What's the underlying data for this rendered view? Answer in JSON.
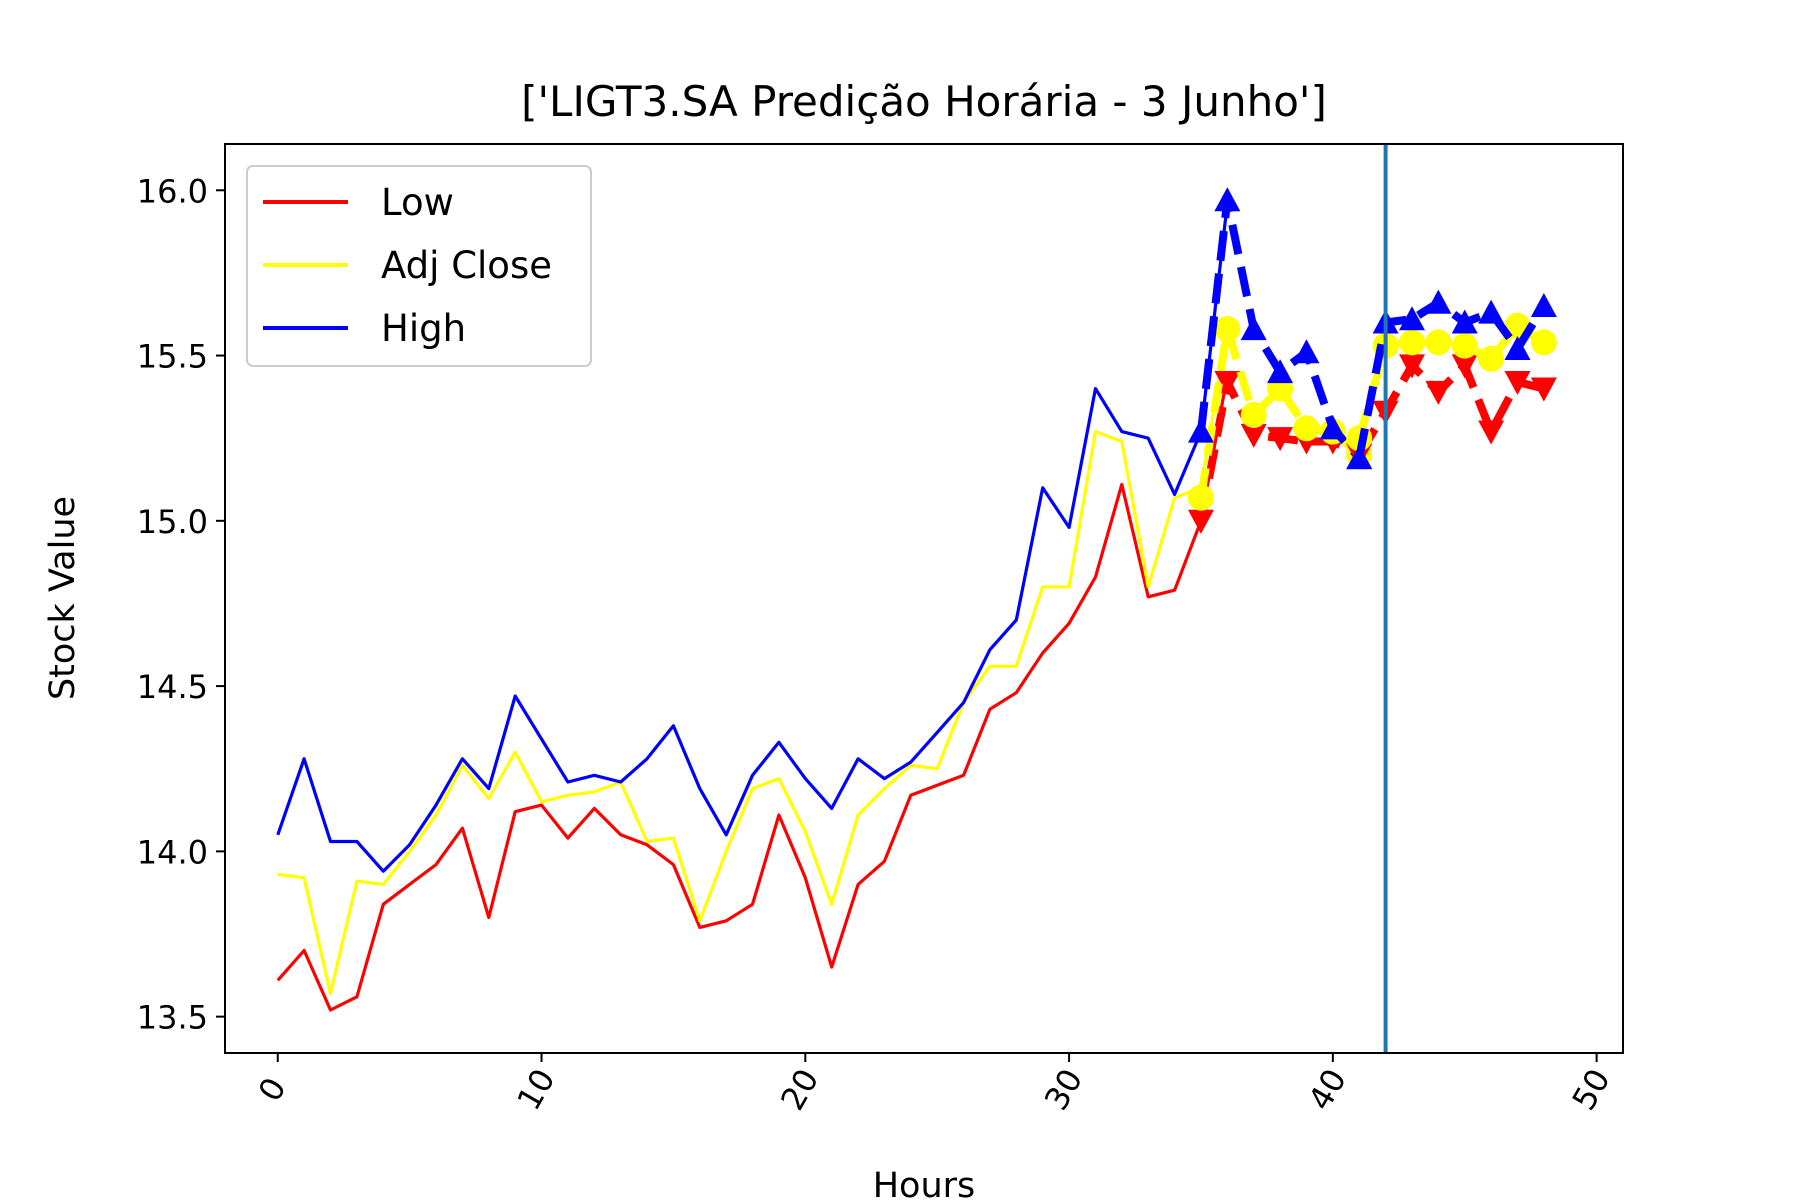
{
  "chart_data": {
    "type": "line",
    "title": "['LIGT3.SA Predição Horária - 3 Junho']",
    "xlabel": "Hours",
    "ylabel": "Stock Value",
    "xlim": [
      -2,
      51
    ],
    "ylim": [
      13.39,
      16.14
    ],
    "xticks": [
      0,
      10,
      20,
      30,
      40,
      50
    ],
    "xtick_labels": [
      "0",
      "10",
      "20",
      "30",
      "40",
      "50"
    ],
    "yticks": [
      13.5,
      14.0,
      14.5,
      15.0,
      15.5,
      16.0
    ],
    "ytick_labels": [
      "13.5",
      "14.0",
      "14.5",
      "15.0",
      "15.5",
      "16.0"
    ],
    "legend_position": "upper-left",
    "vertical_line": {
      "x": 42,
      "color": "#1f77b4"
    },
    "series": [
      {
        "name": "Low",
        "color": "#ff0000",
        "style": "solid",
        "marker": "",
        "x": [
          0,
          1,
          2,
          3,
          4,
          5,
          6,
          7,
          8,
          9,
          10,
          11,
          12,
          13,
          14,
          15,
          16,
          17,
          18,
          19,
          20,
          21,
          22,
          23,
          24,
          25,
          26,
          27,
          28,
          29,
          30,
          31,
          32,
          33,
          34,
          35,
          36
        ],
        "values": [
          13.61,
          13.7,
          13.52,
          13.56,
          13.84,
          13.9,
          13.96,
          14.07,
          13.8,
          14.12,
          14.14,
          14.04,
          14.13,
          14.05,
          14.02,
          13.96,
          13.77,
          13.79,
          13.84,
          14.11,
          13.92,
          13.65,
          13.9,
          13.97,
          14.17,
          14.2,
          14.23,
          14.43,
          14.48,
          14.6,
          14.69,
          14.83,
          15.11,
          14.77,
          14.79,
          15.0,
          15.44
        ]
      },
      {
        "name": "Adj Close",
        "color": "#ffff00",
        "style": "solid",
        "marker": "",
        "x": [
          0,
          1,
          2,
          3,
          4,
          5,
          6,
          7,
          8,
          9,
          10,
          11,
          12,
          13,
          14,
          15,
          16,
          17,
          18,
          19,
          20,
          21,
          22,
          23,
          24,
          25,
          26,
          27,
          28,
          29,
          30,
          31,
          32,
          33,
          34,
          35,
          36
        ],
        "values": [
          13.93,
          13.92,
          13.57,
          13.91,
          13.9,
          14.0,
          14.11,
          14.26,
          14.16,
          14.3,
          14.15,
          14.17,
          14.18,
          14.21,
          14.03,
          14.04,
          13.79,
          14.0,
          14.19,
          14.22,
          14.06,
          13.84,
          14.11,
          14.19,
          14.26,
          14.25,
          14.45,
          14.56,
          14.56,
          14.8,
          14.8,
          15.27,
          15.24,
          14.8,
          15.07,
          15.1,
          15.58
        ]
      },
      {
        "name": "High",
        "color": "#0000ff",
        "style": "solid",
        "marker": "",
        "x": [
          0,
          1,
          2,
          3,
          4,
          5,
          6,
          7,
          8,
          9,
          10,
          11,
          12,
          13,
          14,
          15,
          16,
          17,
          18,
          19,
          20,
          21,
          22,
          23,
          24,
          25,
          26,
          27,
          28,
          29,
          30,
          31,
          32,
          33,
          34,
          35,
          36
        ],
        "values": [
          14.05,
          14.28,
          14.03,
          14.03,
          13.94,
          14.02,
          14.14,
          14.28,
          14.19,
          14.47,
          14.34,
          14.21,
          14.23,
          14.21,
          14.28,
          14.38,
          14.19,
          14.05,
          14.23,
          14.33,
          14.22,
          14.13,
          14.28,
          14.22,
          14.27,
          14.36,
          14.45,
          14.61,
          14.7,
          15.1,
          14.98,
          15.4,
          15.27,
          15.25,
          15.08,
          15.27,
          15.96
        ]
      },
      {
        "name": "",
        "color": "#ff0000",
        "style": "dashed",
        "marker": "triangle-down",
        "x": [
          35,
          36,
          37,
          38,
          39,
          40,
          41
        ],
        "values": [
          15.0,
          15.42,
          15.26,
          15.25,
          15.24,
          15.24,
          15.2
        ]
      },
      {
        "name": "",
        "color": "#ffff00",
        "style": "dashed",
        "marker": "circle",
        "x": [
          35,
          36,
          37,
          38,
          39,
          40,
          41
        ],
        "values": [
          15.07,
          15.58,
          15.32,
          15.4,
          15.28,
          15.27,
          15.2
        ]
      },
      {
        "name": "",
        "color": "#0000ff",
        "style": "dashed",
        "marker": "triangle-up",
        "x": [
          35,
          36,
          37,
          38,
          39,
          40,
          41
        ],
        "values": [
          15.27,
          15.97,
          15.58,
          15.45,
          15.51,
          15.28,
          15.19
        ]
      },
      {
        "name": "",
        "color": "#ff0000",
        "style": "dashed",
        "marker": "triangle-down",
        "x": [
          41,
          42,
          43,
          44,
          45,
          46,
          47,
          48
        ],
        "values": [
          15.2,
          15.33,
          15.47,
          15.39,
          15.47,
          15.27,
          15.42,
          15.4
        ]
      },
      {
        "name": "",
        "color": "#ffff00",
        "style": "dashed",
        "marker": "circle",
        "x": [
          41,
          42,
          43,
          44,
          45,
          46,
          47,
          48
        ],
        "values": [
          15.25,
          15.53,
          15.54,
          15.54,
          15.53,
          15.49,
          15.59,
          15.54
        ]
      },
      {
        "name": "",
        "color": "#0000ff",
        "style": "dashed",
        "marker": "triangle-up",
        "x": [
          41,
          42,
          43,
          44,
          45,
          46,
          47,
          48
        ],
        "values": [
          15.19,
          15.6,
          15.61,
          15.66,
          15.6,
          15.63,
          15.52,
          15.65
        ]
      }
    ]
  }
}
